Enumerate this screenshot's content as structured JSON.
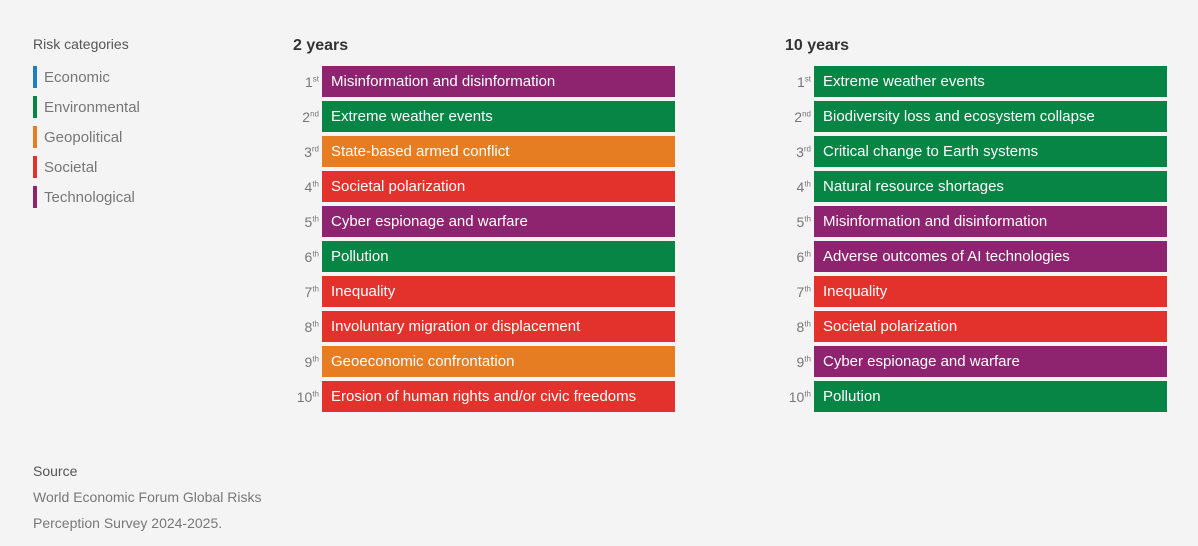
{
  "legend": {
    "title": "Risk categories",
    "items": [
      {
        "label": "Economic",
        "color": "#1f7dc1"
      },
      {
        "label": "Environmental",
        "color": "#068544"
      },
      {
        "label": "Geopolitical",
        "color": "#e77d22"
      },
      {
        "label": "Societal",
        "color": "#e3312b"
      },
      {
        "label": "Technological",
        "color": "#8e2370"
      }
    ]
  },
  "source": {
    "title": "Source",
    "line1": "World Economic Forum Global Risks",
    "line2": "Perception Survey 2024-2025."
  },
  "chart_data": [
    {
      "type": "table",
      "title": "2 years",
      "ranks": [
        {
          "num": "1",
          "sup": "st",
          "label": "Misinformation and disinformation",
          "category": "Technological"
        },
        {
          "num": "2",
          "sup": "nd",
          "label": "Extreme weather events",
          "category": "Environmental"
        },
        {
          "num": "3",
          "sup": "rd",
          "label": "State-based armed conflict",
          "category": "Geopolitical"
        },
        {
          "num": "4",
          "sup": "th",
          "label": "Societal polarization",
          "category": "Societal"
        },
        {
          "num": "5",
          "sup": "th",
          "label": "Cyber espionage and warfare",
          "category": "Technological"
        },
        {
          "num": "6",
          "sup": "th",
          "label": "Pollution",
          "category": "Environmental"
        },
        {
          "num": "7",
          "sup": "th",
          "label": "Inequality",
          "category": "Societal"
        },
        {
          "num": "8",
          "sup": "th",
          "label": "Involuntary migration or displacement",
          "category": "Societal"
        },
        {
          "num": "9",
          "sup": "th",
          "label": "Geoeconomic confrontation",
          "category": "Geopolitical"
        },
        {
          "num": "10",
          "sup": "th",
          "label": "Erosion of human rights and/or civic freedoms",
          "category": "Societal"
        }
      ]
    },
    {
      "type": "table",
      "title": "10 years",
      "ranks": [
        {
          "num": "1",
          "sup": "st",
          "label": "Extreme weather events",
          "category": "Environmental"
        },
        {
          "num": "2",
          "sup": "nd",
          "label": "Biodiversity loss and ecosystem collapse",
          "category": "Environmental"
        },
        {
          "num": "3",
          "sup": "rd",
          "label": "Critical change to Earth systems",
          "category": "Environmental"
        },
        {
          "num": "4",
          "sup": "th",
          "label": "Natural resource shortages",
          "category": "Environmental"
        },
        {
          "num": "5",
          "sup": "th",
          "label": "Misinformation and disinformation",
          "category": "Technological"
        },
        {
          "num": "6",
          "sup": "th",
          "label": "Adverse outcomes of AI technologies",
          "category": "Technological"
        },
        {
          "num": "7",
          "sup": "th",
          "label": "Inequality",
          "category": "Societal"
        },
        {
          "num": "8",
          "sup": "th",
          "label": "Societal polarization",
          "category": "Societal"
        },
        {
          "num": "9",
          "sup": "th",
          "label": "Cyber espionage and warfare",
          "category": "Technological"
        },
        {
          "num": "10",
          "sup": "th",
          "label": "Pollution",
          "category": "Environmental"
        }
      ]
    }
  ]
}
